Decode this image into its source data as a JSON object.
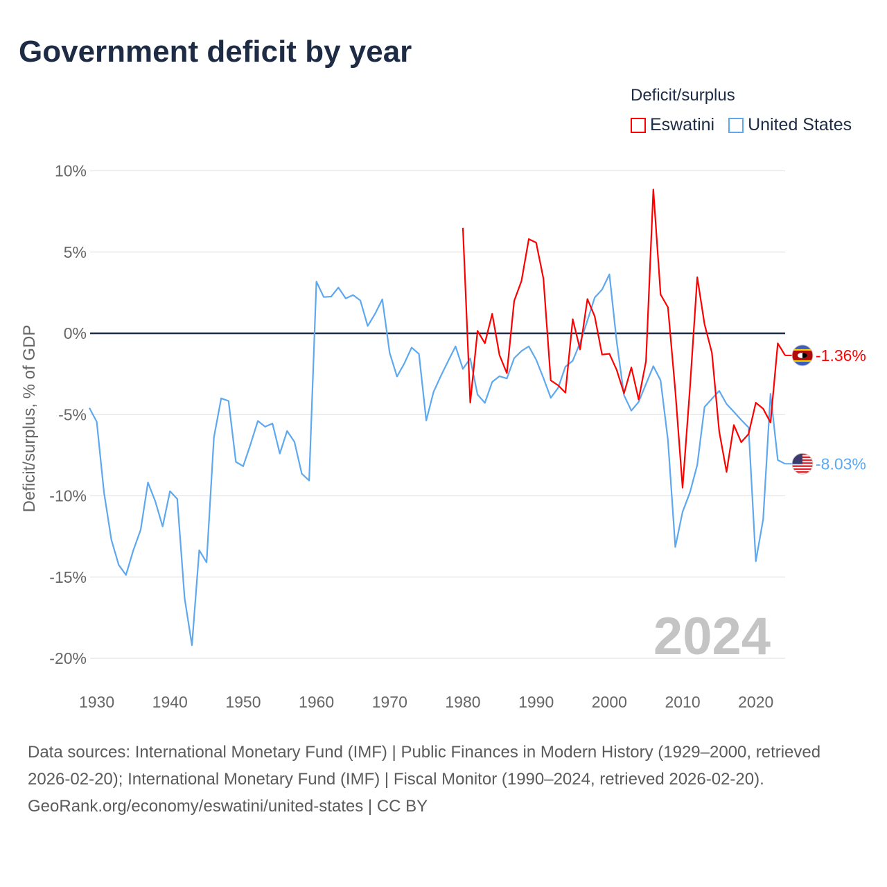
{
  "title": "Government deficit by year",
  "legend": {
    "title": "Deficit/surplus",
    "items": [
      {
        "label": "Eswatini",
        "color": "#ff0000"
      },
      {
        "label": "United States",
        "color": "#5da8ee"
      }
    ]
  },
  "chart_data": {
    "type": "line",
    "title": "Government deficit by year",
    "xlabel": "",
    "ylabel": "Deficit/surplus, % of GDP",
    "xlim": [
      1929,
      2024
    ],
    "ylim": [
      -20,
      10
    ],
    "yticks": [
      10,
      5,
      0,
      -5,
      -10,
      -15,
      -20
    ],
    "ytick_labels": [
      "10%",
      "5%",
      "0%",
      "-5%",
      "-10%",
      "-15%",
      "-20%"
    ],
    "xticks": [
      1930,
      1940,
      1950,
      1960,
      1970,
      1980,
      1990,
      2000,
      2010,
      2020
    ],
    "xtick_labels": [
      "1930",
      "1940",
      "1950",
      "1960",
      "1970",
      "1980",
      "1990",
      "2000",
      "2010",
      "2020"
    ],
    "grid": true,
    "legend_position": "top-right",
    "current_year_label": "2024",
    "series": [
      {
        "name": "Eswatini",
        "color": "#ff0000",
        "end_label": "-1.36%",
        "x_start": 1980,
        "values": [
          6.49,
          -4.27,
          0.15,
          -0.61,
          1.2,
          -1.34,
          -2.45,
          2.0,
          3.22,
          5.8,
          5.58,
          3.37,
          -2.9,
          -3.2,
          -3.65,
          0.87,
          -0.99,
          2.11,
          1.05,
          -1.31,
          -1.26,
          -2.25,
          -3.69,
          -2.1,
          -4.07,
          -1.72,
          8.85,
          2.39,
          1.6,
          -3.54,
          -9.5,
          -3.39,
          3.45,
          0.56,
          -1.19,
          -6.05,
          -8.53,
          -5.64,
          -6.7,
          -6.2,
          -4.27,
          -4.64,
          -5.49,
          -0.62,
          -1.36
        ]
      },
      {
        "name": "United States",
        "color": "#5da8ee",
        "end_label": "-8.03%",
        "x_start": 1929,
        "values": [
          -4.59,
          -5.44,
          -9.8,
          -12.7,
          -14.25,
          -14.87,
          -13.35,
          -12.09,
          -9.18,
          -10.34,
          -11.89,
          -9.72,
          -10.19,
          -16.3,
          -19.2,
          -13.35,
          -14.1,
          -6.4,
          -4.0,
          -4.16,
          -7.91,
          -8.18,
          -6.83,
          -5.39,
          -5.75,
          -5.55,
          -7.4,
          -6.01,
          -6.68,
          -8.64,
          -9.06,
          3.18,
          2.23,
          2.26,
          2.82,
          2.15,
          2.36,
          2.02,
          0.45,
          1.2,
          2.09,
          -1.2,
          -2.66,
          -1.86,
          -0.88,
          -1.27,
          -5.37,
          -3.6,
          -2.61,
          -1.69,
          -0.8,
          -2.19,
          -1.55,
          -3.77,
          -4.28,
          -2.99,
          -2.64,
          -2.78,
          -1.53,
          -1.09,
          -0.8,
          -1.62,
          -2.75,
          -3.97,
          -3.36,
          -2.05,
          -1.69,
          -0.58,
          0.79,
          2.2,
          2.69,
          3.63,
          -0.5,
          -3.81,
          -4.76,
          -4.22,
          -3.12,
          -2.02,
          -2.9,
          -6.58,
          -13.15,
          -10.99,
          -9.8,
          -8.1,
          -4.53,
          -4.03,
          -3.54,
          -4.35,
          -4.83,
          -5.33,
          -5.79,
          -14.03,
          -11.44,
          -3.72,
          -7.8,
          -8.03
        ]
      }
    ]
  },
  "footer": {
    "sources": "Data sources: International Monetary Fund (IMF) | Public Finances in Modern History (1929–2000, retrieved 2026-02-20); International Monetary Fund (IMF) | Fiscal Monitor (1990–2024, retrieved 2026-02-20).",
    "link": "GeoRank.org/economy/eswatini/united-states | CC BY"
  }
}
